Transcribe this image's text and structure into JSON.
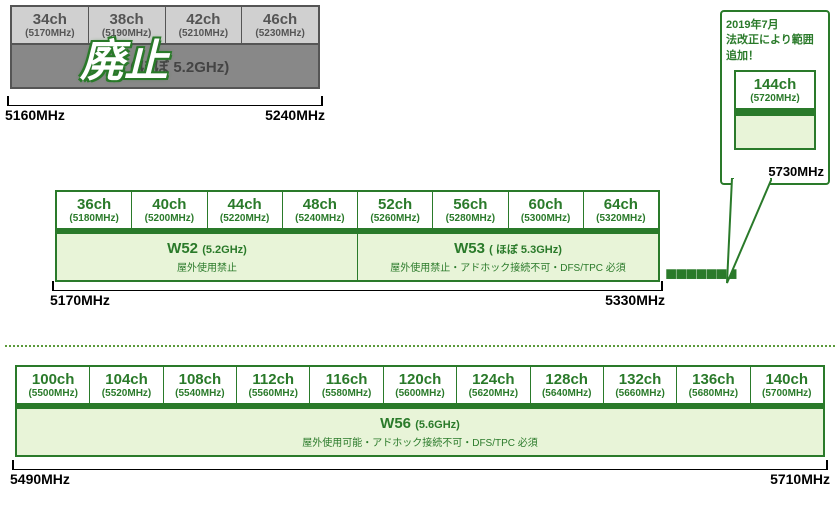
{
  "colors": {
    "green": "#2a7a2a",
    "lightgreen_bg": "#e8f4d8",
    "gray_bg": "#d0d0d0",
    "gray_band": "#888888",
    "gray_text": "#555555"
  },
  "j52": {
    "channels": [
      {
        "ch": "34ch",
        "freq": "(5170MHz)"
      },
      {
        "ch": "38ch",
        "freq": "(5190MHz)"
      },
      {
        "ch": "42ch",
        "freq": "(5210MHz)"
      },
      {
        "ch": "46ch",
        "freq": "(5230MHz)"
      }
    ],
    "band_label": "J52 ( ほぼ 5.2GHz)",
    "stamp": "廃止",
    "range_start": "5160MHz",
    "range_end": "5240MHz"
  },
  "w52w53": {
    "channels": [
      {
        "ch": "36ch",
        "freq": "(5180MHz)"
      },
      {
        "ch": "40ch",
        "freq": "(5200MHz)"
      },
      {
        "ch": "44ch",
        "freq": "(5220MHz)"
      },
      {
        "ch": "48ch",
        "freq": "(5240MHz)"
      },
      {
        "ch": "52ch",
        "freq": "(5260MHz)"
      },
      {
        "ch": "56ch",
        "freq": "(5280MHz)"
      },
      {
        "ch": "60ch",
        "freq": "(5300MHz)"
      },
      {
        "ch": "64ch",
        "freq": "(5320MHz)"
      }
    ],
    "bands": [
      {
        "title": "W52",
        "sub": "(5.2GHz)",
        "note": "屋外使用禁止"
      },
      {
        "title": "W53",
        "sub": "( ほぼ 5.3GHz)",
        "note": "屋外使用禁止・アドホック接続不可・DFS/TPC 必須"
      }
    ],
    "range_start": "5170MHz",
    "range_end": "5330MHz"
  },
  "w56": {
    "channels": [
      {
        "ch": "100ch",
        "freq": "(5500MHz)"
      },
      {
        "ch": "104ch",
        "freq": "(5520MHz)"
      },
      {
        "ch": "108ch",
        "freq": "(5540MHz)"
      },
      {
        "ch": "112ch",
        "freq": "(5560MHz)"
      },
      {
        "ch": "116ch",
        "freq": "(5580MHz)"
      },
      {
        "ch": "120ch",
        "freq": "(5600MHz)"
      },
      {
        "ch": "124ch",
        "freq": "(5620MHz)"
      },
      {
        "ch": "128ch",
        "freq": "(5640MHz)"
      },
      {
        "ch": "132ch",
        "freq": "(5660MHz)"
      },
      {
        "ch": "136ch",
        "freq": "(5680MHz)"
      },
      {
        "ch": "140ch",
        "freq": "(5700MHz)"
      }
    ],
    "band": {
      "title": "W56",
      "sub": "(5.6GHz)",
      "note": "屋外使用可能・アドホック接続不可・DFS/TPC 必須"
    },
    "range_start": "5490MHz",
    "range_end": "5710MHz"
  },
  "callout": {
    "text1": "2019年7月",
    "text2": "法改正により範囲追加！",
    "ch": "144ch",
    "freq": "(5720MHz)",
    "range_end": "5730MHz"
  },
  "dots": "■■■■■■■"
}
